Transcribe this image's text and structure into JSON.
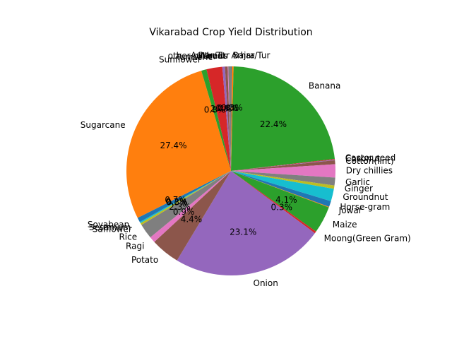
{
  "chart_data": {
    "type": "pie",
    "title": "Vikarabad Crop Yield Distribution",
    "start_angle_deg": 90,
    "direction": "clockwise",
    "slices": [
      {
        "label": "Arhar/Tur",
        "value": 0.1,
        "pct_label": "",
        "color": "#1f77b4"
      },
      {
        "label": "Bajra",
        "value": 0.3,
        "pct_label": "0.3%",
        "color": "#ff7f0e"
      },
      {
        "label": "Banana",
        "value": 22.4,
        "pct_label": "22.4%",
        "color": "#2ca02c"
      },
      {
        "label": "Castor seed",
        "value": 0.1,
        "pct_label": "",
        "color": "#d62728"
      },
      {
        "label": "Coconut",
        "value": 0.1,
        "pct_label": "",
        "color": "#9467bd"
      },
      {
        "label": "Cotton(lint)",
        "value": 0.6,
        "pct_label": "",
        "color": "#8c564b"
      },
      {
        "label": "Dry chillies",
        "value": 2.0,
        "pct_label": "",
        "color": "#e377c2"
      },
      {
        "label": "Garlic",
        "value": 1.2,
        "pct_label": "",
        "color": "#7f7f7f"
      },
      {
        "label": "Ginger",
        "value": 0.5,
        "pct_label": "",
        "color": "#bcbd22"
      },
      {
        "label": "Groundnut",
        "value": 1.9,
        "pct_label": "",
        "color": "#17becf"
      },
      {
        "label": "Horse-gram",
        "value": 0.9,
        "pct_label": "",
        "color": "#1f77b4"
      },
      {
        "label": "Jowar",
        "value": 0.1,
        "pct_label": "",
        "color": "#ff7f0e"
      },
      {
        "label": "Maize",
        "value": 4.1,
        "pct_label": "4.1%",
        "color": "#2ca02c"
      },
      {
        "label": "Moong(Green Gram)",
        "value": 0.3,
        "pct_label": "0.3%",
        "color": "#d62728"
      },
      {
        "label": "Onion",
        "value": 23.1,
        "pct_label": "23.1%",
        "color": "#9467bd"
      },
      {
        "label": "Potato",
        "value": 4.4,
        "pct_label": "4.4%",
        "color": "#8c564b"
      },
      {
        "label": "Ragi",
        "value": 0.9,
        "pct_label": "0.9%",
        "color": "#e377c2"
      },
      {
        "label": "Rice",
        "value": 2.3,
        "pct_label": "2.3%",
        "color": "#7f7f7f"
      },
      {
        "label": "Safflower",
        "value": 0.3,
        "pct_label": "0.3%",
        "color": "#bcbd22"
      },
      {
        "label": "Sesamum",
        "value": 0.2,
        "pct_label": "0.2%",
        "color": "#17becf"
      },
      {
        "label": "Soyabean",
        "value": 0.7,
        "pct_label": "0.7%",
        "color": "#1f77b4"
      },
      {
        "label": "Sugarcane",
        "value": 27.4,
        "pct_label": "27.4%",
        "color": "#ff7f0e"
      },
      {
        "label": "Sunflower",
        "value": 0.8,
        "pct_label": "0.8%",
        "color": "#2ca02c"
      },
      {
        "label": "Turmeric",
        "value": 2.4,
        "pct_label": "2.4%",
        "color": "#d62728"
      },
      {
        "label": "Urad",
        "value": 0.4,
        "pct_label": "0.4%",
        "color": "#9467bd"
      },
      {
        "label": "Wheat",
        "value": 0.4,
        "pct_label": "0.4%",
        "color": "#8c564b"
      },
      {
        "label": "other oilseeds",
        "value": 0.1,
        "pct_label": "",
        "color": "#e377c2"
      },
      {
        "label": "Arhar/Tur",
        "value": 0.4,
        "pct_label": "",
        "color": "#7f7f7f"
      }
    ]
  }
}
